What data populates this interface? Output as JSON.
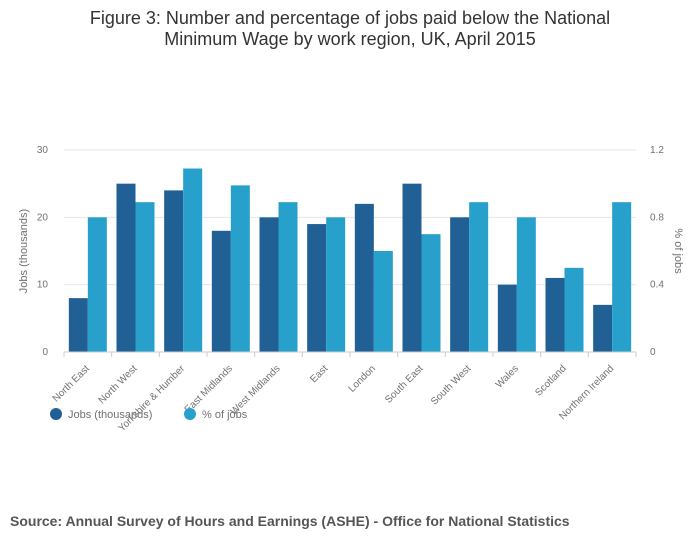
{
  "title_lines": [
    "Figure 3: Number and percentage of jobs paid below the National",
    "Minimum Wage by work region, UK, April 2015"
  ],
  "source": "Source: Annual Survey of Hours and Earnings (ASHE) - Office for National Statistics",
  "colors": {
    "jobs": "#206095",
    "pct": "#27A0CC",
    "grid": "#e6e6e6"
  },
  "chart_data": {
    "type": "bar",
    "categories": [
      "North East",
      "North West",
      "Yorkshire & Humber",
      "East Midlands",
      "West Midlands",
      "East",
      "London",
      "South East",
      "South West",
      "Wales",
      "Scotland",
      "Northern Ireland"
    ],
    "series": [
      {
        "name": "Jobs (thousands)",
        "axis": "left",
        "values": [
          8,
          25,
          24,
          18,
          20,
          19,
          22,
          25,
          20,
          10,
          11,
          7
        ]
      },
      {
        "name": "% of jobs",
        "axis": "right",
        "values": [
          0.8,
          0.89,
          1.09,
          0.99,
          0.89,
          0.8,
          0.6,
          0.7,
          0.89,
          0.8,
          0.5,
          0.89
        ]
      }
    ],
    "ylabel": "Jobs (thousands)",
    "y2label": "% of jobs",
    "ylim": [
      0,
      30
    ],
    "y2lim": [
      0,
      1.2
    ],
    "yticks": [
      "0",
      "10",
      "20",
      "30"
    ],
    "y2ticks": [
      "0",
      "0.4",
      "0.8",
      "1.2"
    ],
    "legend_position": "bottom-left",
    "grid": true
  }
}
